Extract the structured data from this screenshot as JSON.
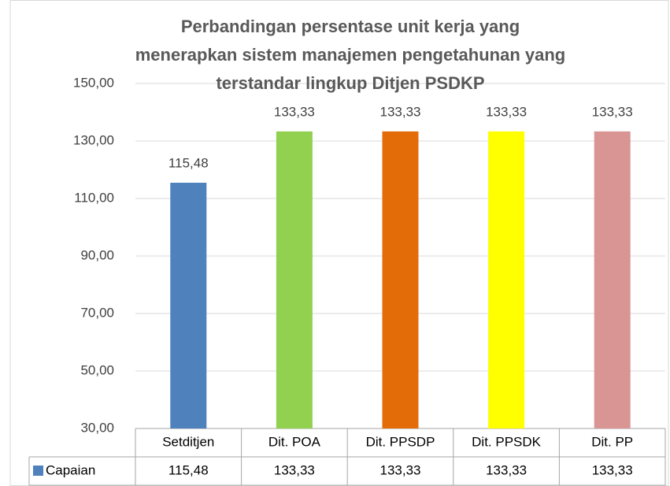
{
  "chart_data": {
    "type": "bar",
    "title": [
      "Perbandingan persentase unit kerja yang",
      "menerapkan sistem manajemen pengetahunan yang",
      "terstandar lingkup Ditjen PSDKP"
    ],
    "categories": [
      "Setditjen",
      "Dit. POA",
      "Dit. PPSDP",
      "Dit. PPSDK",
      "Dit. PP"
    ],
    "series": [
      {
        "name": "Capaian",
        "color": "#4f81bd",
        "values": [
          115.48,
          133.33,
          133.33,
          133.33,
          133.33
        ],
        "value_labels": [
          "115,48",
          "133,33",
          "133,33",
          "133,33",
          "133,33"
        ]
      }
    ],
    "bar_colors": [
      "#4f81bd",
      "#92d050",
      "#e36c09",
      "#ffff00",
      "#d99594"
    ],
    "ylim": [
      30,
      150
    ],
    "yticks": [
      {
        "value": 30,
        "label": "30,00"
      },
      {
        "value": 50,
        "label": "50,00"
      },
      {
        "value": 70,
        "label": "70,00"
      },
      {
        "value": 90,
        "label": "90,00"
      },
      {
        "value": 110,
        "label": "110,00"
      },
      {
        "value": 130,
        "label": "130,00"
      },
      {
        "value": 150,
        "label": "150,00"
      }
    ],
    "grid": true
  }
}
